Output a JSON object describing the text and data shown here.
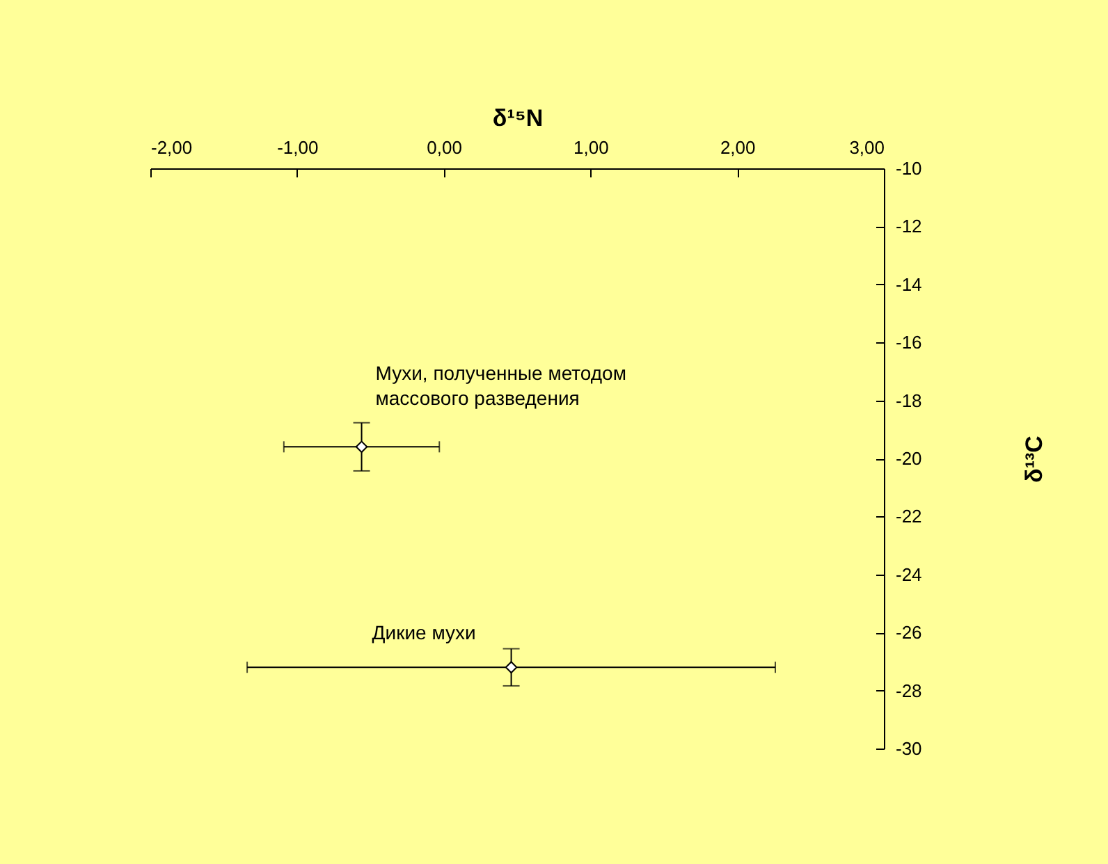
{
  "chart_data": {
    "type": "scatter",
    "xlabel": "δ¹⁵N",
    "ylabel": "δ¹³C",
    "marker": "diamond",
    "grid": false,
    "xlim": [
      -2,
      3
    ],
    "xticks": [
      {
        "value": -2,
        "label": "-2,00"
      },
      {
        "value": -1,
        "label": "-1,00"
      },
      {
        "value": 0,
        "label": "0,00"
      },
      {
        "value": 1,
        "label": "1,00"
      },
      {
        "value": 2,
        "label": "2,00"
      },
      {
        "value": 3,
        "label": "3,00"
      }
    ],
    "ylim": [
      -30,
      -10
    ],
    "yticks": [
      -30,
      -28,
      -26,
      -24,
      -22,
      -20,
      -18,
      -16,
      -14,
      -12,
      -10
    ],
    "series": [
      {
        "name": "Мухи, полученные методом\nмассового разведения",
        "color": "#000000",
        "x": [
          -0.56
        ],
        "values": [
          -19.6
        ],
        "errors": [
          0.83
        ],
        "xerrors": [
          0.53
        ]
      },
      {
        "name": "Дикие  мухи",
        "color": "#000000",
        "x": [
          0.46
        ],
        "values": [
          -27.2
        ],
        "errors": [
          0.64
        ],
        "xerrors": [
          1.8
        ]
      }
    ]
  }
}
